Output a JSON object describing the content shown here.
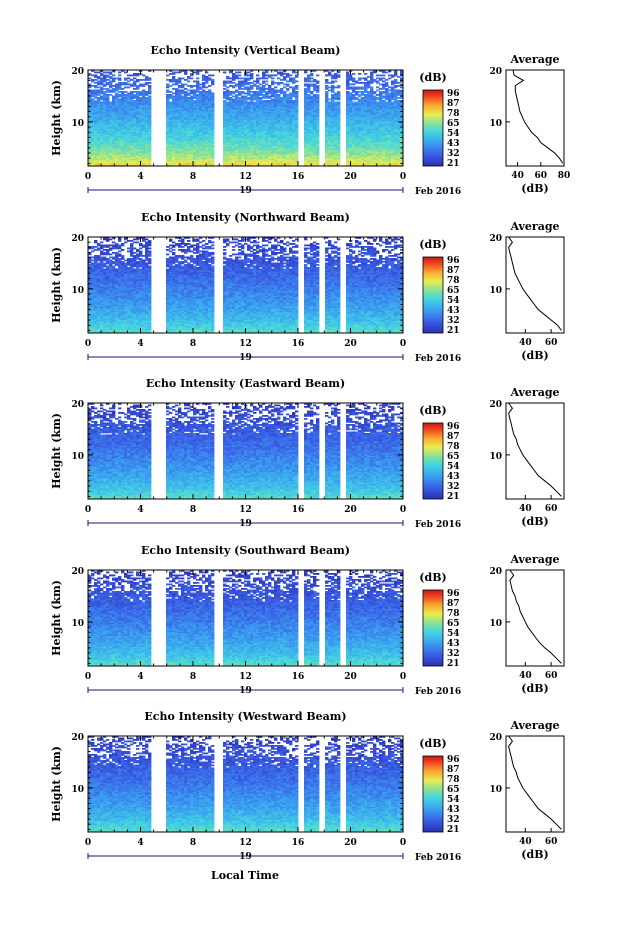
{
  "figure": {
    "x_label": "Local Time",
    "day_label": "19",
    "month_label": "Feb 2016"
  },
  "colorbar": {
    "unit": "(dB)",
    "ticks": [
      "96",
      "87",
      "78",
      "65",
      "54",
      "43",
      "32",
      "21"
    ]
  },
  "chart_data": [
    {
      "type": "heatmap",
      "title": "Echo Intensity (Vertical Beam)",
      "xlabel": "Local Time",
      "ylabel": "Height (km)",
      "xlim": [
        0,
        24
      ],
      "ylim": [
        1.5,
        20
      ],
      "xticks": [
        "0",
        "4",
        "8",
        "12",
        "16",
        "20",
        "0"
      ],
      "yticks": [
        "20",
        "10"
      ],
      "data_gaps_hours": [
        [
          4.7,
          6.0
        ],
        [
          9.6,
          10.3
        ],
        [
          16.0,
          16.5
        ],
        [
          17.7,
          18.1
        ],
        [
          19.2,
          19.7
        ]
      ],
      "colorbar_ticks_db": [
        96,
        87,
        78,
        65,
        54,
        43,
        32,
        21
      ],
      "low_level_db": 80,
      "high_level_db": 30,
      "average_profile": {
        "title": "Average",
        "xlabel": "(dB)",
        "xlim": [
          30,
          80
        ],
        "xticks": [
          "40",
          "60",
          "80"
        ],
        "height_km": [
          2,
          3,
          4,
          5,
          6,
          7,
          8,
          9,
          10,
          11,
          12,
          13,
          14,
          15,
          16,
          17,
          18,
          19,
          20
        ],
        "db": [
          79,
          76,
          72,
          66,
          60,
          57,
          52,
          49,
          46,
          44,
          42,
          41,
          40,
          39,
          38,
          38,
          45,
          37,
          36
        ]
      }
    },
    {
      "type": "heatmap",
      "title": "Echo Intensity (Northward Beam)",
      "xlabel": "",
      "ylabel": "Height (km)",
      "xlim": [
        0,
        24
      ],
      "ylim": [
        1.5,
        20
      ],
      "xticks": [
        "0",
        "4",
        "8",
        "12",
        "16",
        "20",
        "0"
      ],
      "yticks": [
        "20",
        "10"
      ],
      "data_gaps_hours": [
        [
          4.7,
          6.0
        ],
        [
          9.6,
          10.3
        ],
        [
          16.0,
          16.5
        ],
        [
          17.7,
          18.1
        ],
        [
          19.2,
          19.7
        ]
      ],
      "colorbar_ticks_db": [
        96,
        87,
        78,
        65,
        54,
        43,
        32,
        21
      ],
      "low_level_db": 62,
      "high_level_db": 25,
      "average_profile": {
        "title": "Average",
        "xlabel": "(dB)",
        "xlim": [
          25,
          70
        ],
        "xticks": [
          "40",
          "60"
        ],
        "height_km": [
          2,
          3,
          4,
          5,
          6,
          7,
          8,
          9,
          10,
          11,
          12,
          13,
          14,
          15,
          16,
          17,
          18,
          19,
          20
        ],
        "db": [
          68,
          65,
          60,
          55,
          50,
          47,
          44,
          41,
          38,
          36,
          34,
          32,
          31,
          30,
          29,
          28,
          27,
          30,
          27
        ]
      }
    },
    {
      "type": "heatmap",
      "title": "Echo Intensity (Eastward Beam)",
      "xlabel": "",
      "ylabel": "Height (km)",
      "xlim": [
        0,
        24
      ],
      "ylim": [
        1.5,
        20
      ],
      "xticks": [
        "0",
        "4",
        "8",
        "12",
        "16",
        "20",
        "0"
      ],
      "yticks": [
        "20",
        "10"
      ],
      "data_gaps_hours": [
        [
          4.7,
          6.0
        ],
        [
          9.6,
          10.3
        ],
        [
          16.0,
          16.5
        ],
        [
          17.7,
          18.1
        ],
        [
          19.2,
          19.7
        ]
      ],
      "colorbar_ticks_db": [
        96,
        87,
        78,
        65,
        54,
        43,
        32,
        21
      ],
      "low_level_db": 62,
      "high_level_db": 25,
      "average_profile": {
        "title": "Average",
        "xlabel": "(dB)",
        "xlim": [
          25,
          70
        ],
        "xticks": [
          "40",
          "60"
        ],
        "height_km": [
          2,
          3,
          4,
          5,
          6,
          7,
          8,
          9,
          10,
          11,
          12,
          13,
          14,
          15,
          16,
          17,
          18,
          19,
          20
        ],
        "db": [
          68,
          64,
          60,
          55,
          50,
          47,
          44,
          41,
          38,
          36,
          34,
          33,
          31,
          30,
          29,
          28,
          27,
          30,
          27
        ]
      }
    },
    {
      "type": "heatmap",
      "title": "Echo Intensity (Southward Beam)",
      "xlabel": "",
      "ylabel": "Height (km)",
      "xlim": [
        0,
        24
      ],
      "ylim": [
        1.5,
        20
      ],
      "xticks": [
        "0",
        "4",
        "8",
        "12",
        "16",
        "20",
        "0"
      ],
      "yticks": [
        "20",
        "10"
      ],
      "data_gaps_hours": [
        [
          4.7,
          6.0
        ],
        [
          9.6,
          10.3
        ],
        [
          16.0,
          16.5
        ],
        [
          17.7,
          18.1
        ],
        [
          19.2,
          19.7
        ]
      ],
      "colorbar_ticks_db": [
        96,
        87,
        78,
        65,
        54,
        43,
        32,
        21
      ],
      "low_level_db": 62,
      "high_level_db": 25,
      "average_profile": {
        "title": "Average",
        "xlabel": "(dB)",
        "xlim": [
          25,
          70
        ],
        "xticks": [
          "40",
          "60"
        ],
        "height_km": [
          2,
          3,
          4,
          5,
          6,
          7,
          8,
          9,
          10,
          11,
          12,
          13,
          14,
          15,
          16,
          17,
          18,
          19,
          20
        ],
        "db": [
          68,
          64,
          60,
          55,
          51,
          48,
          45,
          42,
          40,
          38,
          36,
          35,
          33,
          32,
          30,
          29,
          28,
          31,
          28
        ]
      }
    },
    {
      "type": "heatmap",
      "title": "Echo Intensity (Westward Beam)",
      "xlabel": "Local Time",
      "ylabel": "Height (km)",
      "xlim": [
        0,
        24
      ],
      "ylim": [
        1.5,
        20
      ],
      "xticks": [
        "0",
        "4",
        "8",
        "12",
        "16",
        "20",
        "0"
      ],
      "yticks": [
        "20",
        "10"
      ],
      "data_gaps_hours": [
        [
          4.7,
          6.0
        ],
        [
          9.6,
          10.3
        ],
        [
          16.0,
          16.5
        ],
        [
          17.7,
          18.1
        ],
        [
          19.2,
          19.7
        ]
      ],
      "colorbar_ticks_db": [
        96,
        87,
        78,
        65,
        54,
        43,
        32,
        21
      ],
      "low_level_db": 62,
      "high_level_db": 25,
      "average_profile": {
        "title": "Average",
        "xlabel": "(dB)",
        "xlim": [
          25,
          70
        ],
        "xticks": [
          "40",
          "60"
        ],
        "height_km": [
          2,
          3,
          4,
          5,
          6,
          7,
          8,
          9,
          10,
          11,
          12,
          13,
          14,
          15,
          16,
          17,
          18,
          19,
          20
        ],
        "db": [
          68,
          64,
          60,
          55,
          50,
          47,
          44,
          41,
          38,
          36,
          34,
          33,
          31,
          30,
          29,
          28,
          27,
          30,
          27
        ]
      }
    }
  ]
}
